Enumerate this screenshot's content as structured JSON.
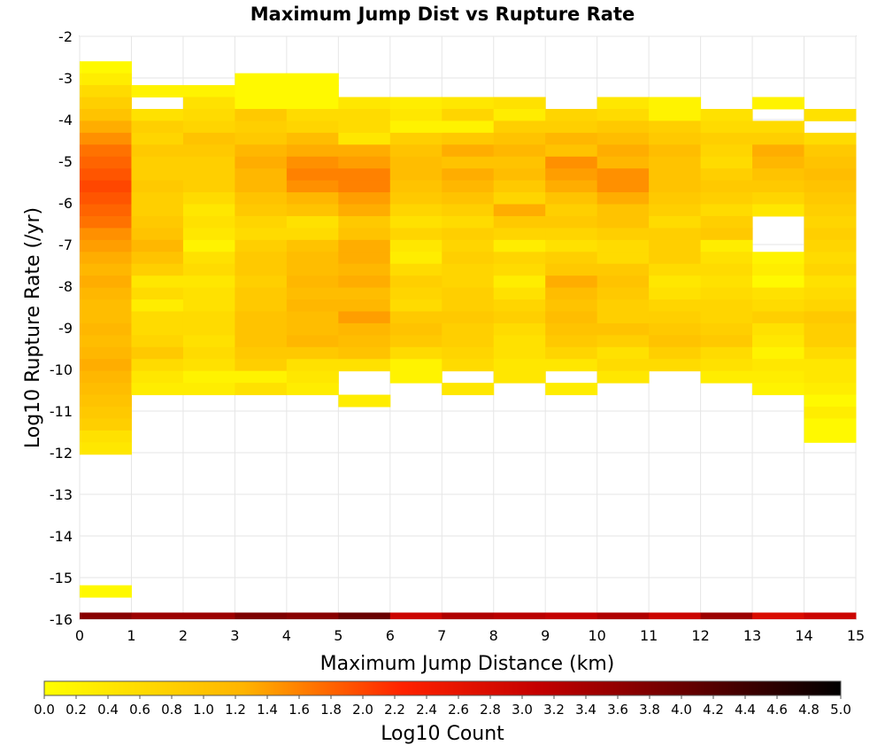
{
  "chart_data": {
    "type": "heatmap",
    "title": "Maximum Jump Dist vs Rupture Rate",
    "xlabel": "Maximum Jump Distance (km)",
    "ylabel": "Log10 Rupture Rate (/yr)",
    "colorbar_label": "Log10 Count",
    "xlim": [
      0,
      15
    ],
    "ylim": [
      -16,
      -2
    ],
    "x_ticks": [
      "0",
      "1",
      "2",
      "3",
      "4",
      "5",
      "6",
      "7",
      "8",
      "9",
      "10",
      "11",
      "12",
      "13",
      "14",
      "15"
    ],
    "y_ticks": [
      "-2",
      "-3",
      "-4",
      "-5",
      "-6",
      "-7",
      "-8",
      "-9",
      "-10",
      "-11",
      "-12",
      "-13",
      "-14",
      "-15",
      "-16"
    ],
    "colorbar_range": [
      0.0,
      5.0
    ],
    "colorbar_ticks": [
      "0.0",
      "0.2",
      "0.4",
      "0.6",
      "0.8",
      "1.0",
      "1.2",
      "1.4",
      "1.6",
      "1.8",
      "2.0",
      "2.2",
      "2.4",
      "2.6",
      "2.8",
      "3.0",
      "3.2",
      "3.4",
      "3.6",
      "3.8",
      "4.0",
      "4.2",
      "4.4",
      "4.6",
      "4.8",
      "5.0"
    ],
    "colormap": "hot-reversed",
    "grid": true,
    "x_bin_width": 1,
    "y_bin_height": 0.286,
    "y_top": -2.6,
    "columns": [
      {
        "x": 0,
        "bins": [
          0.1,
          0.3,
          0.6,
          0.8,
          1.0,
          1.3,
          1.5,
          1.7,
          1.8,
          1.9,
          2.0,
          1.9,
          1.8,
          1.7,
          1.5,
          1.4,
          1.3,
          1.2,
          1.3,
          1.2,
          1.1,
          1.1,
          1.2,
          1.1,
          1.2,
          1.3,
          1.2,
          1.1,
          1.0,
          0.9,
          0.8,
          0.5,
          0.4,
          null,
          null,
          null,
          null,
          null,
          null,
          null,
          null,
          null,
          null,
          null,
          0.1
        ]
      },
      {
        "x": 1,
        "bins": [
          null,
          null,
          0.2,
          null,
          0.5,
          0.8,
          0.7,
          0.9,
          0.8,
          0.8,
          0.9,
          0.8,
          0.8,
          0.9,
          1.0,
          1.2,
          1.0,
          0.8,
          0.4,
          0.6,
          0.3,
          0.6,
          0.6,
          0.7,
          0.9,
          0.6,
          0.4,
          0.3
        ]
      },
      {
        "x": 2,
        "bins": [
          null,
          null,
          0.2,
          0.5,
          0.6,
          0.7,
          1.0,
          0.9,
          0.8,
          0.8,
          0.8,
          0.6,
          0.4,
          0.5,
          0.4,
          0.2,
          0.5,
          0.6,
          0.4,
          0.5,
          0.5,
          0.6,
          0.6,
          0.5,
          0.6,
          0.5,
          0.2,
          0.3
        ]
      },
      {
        "x": 3,
        "bins": [
          null,
          0.1,
          0.1,
          0.1,
          0.9,
          0.8,
          0.9,
          1.2,
          1.3,
          1.2,
          1.2,
          1.0,
          0.9,
          0.7,
          0.6,
          0.8,
          0.9,
          0.9,
          0.8,
          0.9,
          0.9,
          1.0,
          1.0,
          1.0,
          0.9,
          0.8,
          0.2,
          0.5
        ]
      },
      {
        "x": 4,
        "bins": [
          null,
          0.1,
          0.1,
          0.1,
          0.6,
          0.7,
          1.1,
          1.3,
          1.5,
          1.6,
          1.5,
          1.2,
          1.0,
          0.5,
          0.6,
          1.0,
          1.1,
          1.1,
          1.2,
          1.1,
          1.2,
          1.1,
          1.1,
          1.2,
          0.9,
          0.5,
          0.4,
          0.3
        ]
      },
      {
        "x": 5,
        "bins": [
          null,
          null,
          null,
          0.4,
          0.6,
          0.6,
          0.4,
          1.3,
          1.4,
          1.6,
          1.6,
          1.4,
          1.3,
          0.9,
          1.0,
          1.3,
          1.3,
          1.2,
          1.3,
          1.1,
          1.2,
          1.4,
          1.2,
          1.1,
          1.0,
          0.5,
          null,
          null,
          0.3
        ]
      },
      {
        "x": 6,
        "bins": [
          null,
          null,
          null,
          0.3,
          0.4,
          0.2,
          0.8,
          1.0,
          1.1,
          1.1,
          1.0,
          0.9,
          0.7,
          0.5,
          0.7,
          0.4,
          0.3,
          0.6,
          0.8,
          0.7,
          0.6,
          0.9,
          1.0,
          0.9,
          0.6,
          0.2,
          0.2
        ]
      },
      {
        "x": 7,
        "bins": [
          null,
          null,
          null,
          0.4,
          0.7,
          0.2,
          0.9,
          1.3,
          1.0,
          1.3,
          1.2,
          1.0,
          0.8,
          0.6,
          0.8,
          0.7,
          0.8,
          0.7,
          0.7,
          0.8,
          0.8,
          0.9,
          0.8,
          0.8,
          0.7,
          0.6,
          null,
          0.4
        ]
      },
      {
        "x": 8,
        "bins": [
          null,
          null,
          null,
          0.5,
          0.3,
          0.8,
          1.0,
          1.2,
          1.0,
          1.1,
          0.9,
          0.7,
          1.3,
          0.9,
          0.7,
          0.3,
          0.7,
          0.6,
          0.3,
          0.5,
          0.7,
          0.8,
          0.6,
          0.5,
          0.5,
          0.4,
          0.4
        ]
      },
      {
        "x": 9,
        "bins": [
          null,
          null,
          null,
          null,
          0.7,
          0.8,
          1.2,
          1.0,
          1.5,
          1.4,
          1.3,
          1.0,
          0.8,
          0.9,
          0.7,
          0.5,
          0.8,
          0.9,
          1.3,
          1.1,
          1.0,
          1.1,
          1.0,
          0.9,
          0.7,
          0.4,
          null,
          0.3
        ]
      },
      {
        "x": 10,
        "bins": [
          null,
          null,
          null,
          0.4,
          0.6,
          0.9,
          1.1,
          1.3,
          1.2,
          1.5,
          1.5,
          1.3,
          1.0,
          1.0,
          0.8,
          0.6,
          0.6,
          0.9,
          1.0,
          0.9,
          0.8,
          0.8,
          1.0,
          0.8,
          0.5,
          0.6,
          0.4
        ]
      },
      {
        "x": 11,
        "bins": [
          null,
          null,
          null,
          0.2,
          0.2,
          0.8,
          0.9,
          1.1,
          1.0,
          1.0,
          1.0,
          0.9,
          0.8,
          0.6,
          0.8,
          0.8,
          0.8,
          0.6,
          0.4,
          0.5,
          0.7,
          0.8,
          0.9,
          1.0,
          0.8,
          0.6
        ]
      },
      {
        "x": 12,
        "bins": [
          null,
          null,
          null,
          null,
          0.5,
          0.6,
          0.8,
          0.7,
          0.6,
          0.8,
          0.9,
          0.8,
          0.6,
          0.8,
          0.9,
          0.3,
          0.5,
          0.6,
          0.5,
          0.6,
          0.7,
          0.7,
          0.8,
          0.9,
          0.6,
          0.5,
          0.3
        ]
      },
      {
        "x": 13,
        "bins": [
          null,
          null,
          null,
          0.2,
          null,
          0.6,
          0.8,
          1.3,
          1.2,
          1.0,
          0.9,
          0.7,
          0.4,
          null,
          null,
          null,
          0.2,
          0.3,
          0.1,
          0.5,
          0.6,
          0.8,
          0.5,
          0.4,
          0.2,
          0.4,
          0.3,
          0.2
        ]
      },
      {
        "x": 14,
        "bins": [
          null,
          null,
          null,
          null,
          0.5,
          null,
          0.6,
          0.9,
          1.0,
          1.1,
          1.0,
          0.9,
          0.8,
          0.7,
          0.8,
          0.7,
          0.6,
          0.7,
          0.5,
          0.6,
          0.7,
          0.9,
          0.8,
          0.8,
          0.6,
          0.4,
          0.4,
          0.3,
          0.1,
          0.3,
          0.1,
          0.1
        ]
      }
    ],
    "bottom_row": {
      "y": -16,
      "values": [
        3.7,
        3.5,
        3.5,
        3.8,
        3.7,
        4.0,
        3.0,
        3.3,
        3.2,
        3.1,
        3.3,
        3.0,
        3.5,
        2.8,
        3.0
      ]
    }
  }
}
